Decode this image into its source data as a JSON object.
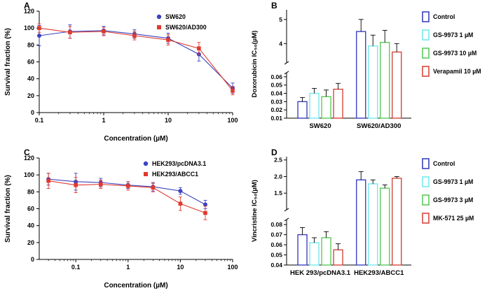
{
  "figure": {
    "background": "#ffffff",
    "panel_letters": [
      "A",
      "B",
      "C",
      "D"
    ]
  },
  "colors": {
    "blue": "#3b43c0",
    "cyan": "#77e8ec",
    "green": "#5bcb5b",
    "red_bar": "#d8473d",
    "red_line": "#e0392e",
    "axis": "#000000"
  },
  "chart_data": [
    {
      "type": "line",
      "panel_label": "A",
      "xlabel": "Concentration (µM)",
      "ylabel": "Survival fraction (%)",
      "x_scale": "log",
      "x_range": [
        0.1,
        100
      ],
      "x_ticks": [
        0.1,
        1,
        10,
        100
      ],
      "x_tick_labels": [
        "0.1",
        "1",
        "10",
        "100"
      ],
      "y_range": [
        0,
        120
      ],
      "y_ticks": [
        0,
        20,
        40,
        60,
        80,
        100,
        120
      ],
      "grid": false,
      "legend_position": "top-right",
      "legend_x": 227,
      "series": [
        {
          "name": "SW620",
          "color": "#3b43c0",
          "marker": "circle",
          "x": [
            0.1,
            0.3,
            1,
            3,
            10,
            30,
            100
          ],
          "y": [
            91,
            96,
            97,
            93,
            88,
            69,
            29
          ],
          "err": [
            12,
            8,
            5,
            5,
            6,
            8,
            6
          ]
        },
        {
          "name": "SW620/AD300",
          "color": "#e0392e",
          "marker": "square",
          "x": [
            0.1,
            0.3,
            1,
            3,
            10,
            30,
            100
          ],
          "y": [
            100,
            95,
            96,
            91,
            86,
            76,
            26
          ],
          "err": [
            5,
            7,
            5,
            5,
            6,
            7,
            5
          ]
        }
      ]
    },
    {
      "type": "bar-broken",
      "panel_label": "B",
      "ylabel": "Doxorubicin IC₅₀(µM)",
      "groups": [
        "SW620",
        "SW620/AD300"
      ],
      "legend_position": "right",
      "axis": {
        "lower": {
          "domain": [
            0.01,
            0.065
          ],
          "ticks": [
            0.01,
            0.02,
            0.03,
            0.04,
            0.05,
            0.06
          ],
          "tick_labels": [
            "0.01",
            "0.02",
            "0.03",
            "0.04",
            "0.05",
            "0.06"
          ]
        },
        "upper": {
          "domain": [
            3.2,
            5.4
          ],
          "ticks": [
            4,
            5
          ],
          "tick_labels": [
            "4",
            "5"
          ]
        }
      },
      "series": [
        {
          "name": "Control",
          "color": "#3b43c0",
          "values": [
            0.03,
            4.5
          ],
          "errors": [
            0.005,
            0.5
          ]
        },
        {
          "name": "GS-9973 1 µM",
          "color": "#77e8ec",
          "values": [
            0.04,
            3.9
          ],
          "errors": [
            0.006,
            0.45
          ]
        },
        {
          "name": "GS-9973 10 µM",
          "color": "#5bcb5b",
          "values": [
            0.036,
            4.05
          ],
          "errors": [
            0.008,
            0.5
          ]
        },
        {
          "name": "Verapamil 10 µM",
          "color": "#d8473d",
          "values": [
            0.045,
            3.65
          ],
          "errors": [
            0.007,
            0.35
          ]
        }
      ]
    },
    {
      "type": "line",
      "panel_label": "C",
      "xlabel": "Concentration (µM)",
      "ylabel": "Survival fraction (%)",
      "x_scale": "log",
      "x_range": [
        0.02,
        100
      ],
      "x_ticks": [
        0.1,
        1,
        10,
        100
      ],
      "x_tick_labels": [
        "0.1",
        "1",
        "10",
        "100"
      ],
      "y_range": [
        0,
        120
      ],
      "y_ticks": [
        0,
        20,
        40,
        60,
        80,
        100,
        120
      ],
      "grid": false,
      "legend_position": "top-right",
      "legend_x": 208,
      "series": [
        {
          "name": "HEK293/pcDNA3.1",
          "color": "#3b43c0",
          "marker": "circle",
          "x": [
            0.03,
            0.1,
            0.3,
            1,
            3,
            10,
            30
          ],
          "y": [
            95,
            92,
            91,
            88,
            86,
            81,
            65
          ],
          "err": [
            7,
            10,
            5,
            4,
            5,
            4,
            5
          ]
        },
        {
          "name": "HEK293/ABCC1",
          "color": "#e0392e",
          "marker": "square",
          "x": [
            0.03,
            0.1,
            0.3,
            1,
            3,
            10,
            30
          ],
          "y": [
            93,
            88,
            89,
            87,
            85,
            66,
            55
          ],
          "err": [
            9,
            9,
            5,
            5,
            5,
            8,
            8
          ]
        }
      ]
    },
    {
      "type": "bar-broken",
      "panel_label": "D",
      "ylabel": "Vincristine IC₅₀(µM)",
      "groups": [
        "HEK 293/pcDNA3.1",
        "HEK293/ABCC1"
      ],
      "legend_position": "right",
      "axis": {
        "lower": {
          "domain": [
            0.04,
            0.085
          ],
          "ticks": [
            0.04,
            0.05,
            0.06,
            0.07,
            0.08
          ],
          "tick_labels": [
            "0.04",
            "0.05",
            "0.06",
            "0.07",
            "0.08"
          ]
        },
        "upper": {
          "domain": [
            1.0,
            2.6
          ],
          "ticks": [
            1.5,
            2.0,
            2.5
          ],
          "tick_labels": [
            "1.5",
            "2.0",
            "2.5"
          ]
        }
      },
      "series": [
        {
          "name": "Control",
          "color": "#3b43c0",
          "values": [
            0.07,
            1.9
          ],
          "errors": [
            0.007,
            0.25
          ]
        },
        {
          "name": "GS-9973 1 µM",
          "color": "#77e8ec",
          "values": [
            0.062,
            1.78
          ],
          "errors": [
            0.005,
            0.12
          ]
        },
        {
          "name": "GS-9973 3 µM",
          "color": "#5bcb5b",
          "values": [
            0.067,
            1.65
          ],
          "errors": [
            0.006,
            0.1
          ]
        },
        {
          "name": "MK-571 25 µM",
          "color": "#d8473d",
          "values": [
            0.055,
            1.95
          ],
          "errors": [
            0.006,
            0.05
          ]
        }
      ]
    }
  ]
}
